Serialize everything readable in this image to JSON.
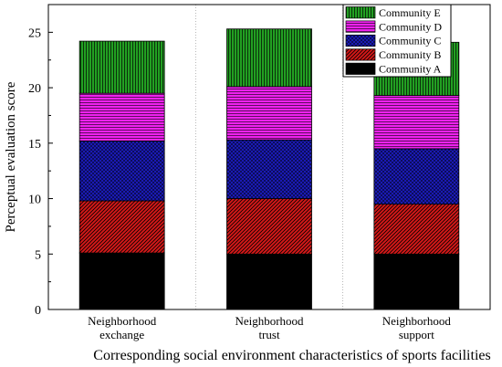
{
  "chart_data": {
    "type": "bar",
    "stacked": true,
    "title": "",
    "xlabel": "Corresponding social environment characteristics of sports facilities",
    "ylabel": "Perceptual evaluation score",
    "ylim": [
      0,
      27.5
    ],
    "yticks": [
      0,
      5,
      10,
      15,
      20,
      25
    ],
    "grid": false,
    "legend_position": "top-right",
    "categories": [
      [
        "Neighborhood",
        "exchange"
      ],
      [
        "Neighborhood",
        "trust"
      ],
      [
        "Neighborhood",
        "support"
      ]
    ],
    "series": [
      {
        "name": "Community A",
        "color": "#000000",
        "pattern": "solid",
        "values": [
          5.1,
          5.0,
          5.0
        ]
      },
      {
        "name": "Community B",
        "color": "#cc1111",
        "pattern": "diagonal",
        "values": [
          4.7,
          5.0,
          4.5
        ]
      },
      {
        "name": "Community C",
        "color": "#1515a8",
        "pattern": "crosshatch",
        "values": [
          5.4,
          5.3,
          5.0
        ]
      },
      {
        "name": "Community D",
        "color": "#e815e8",
        "pattern": "horizontal",
        "values": [
          4.3,
          4.8,
          4.8
        ]
      },
      {
        "name": "Community E",
        "color": "#1f8a1f",
        "pattern": "vertical",
        "values": [
          4.7,
          5.2,
          4.8
        ]
      }
    ]
  }
}
